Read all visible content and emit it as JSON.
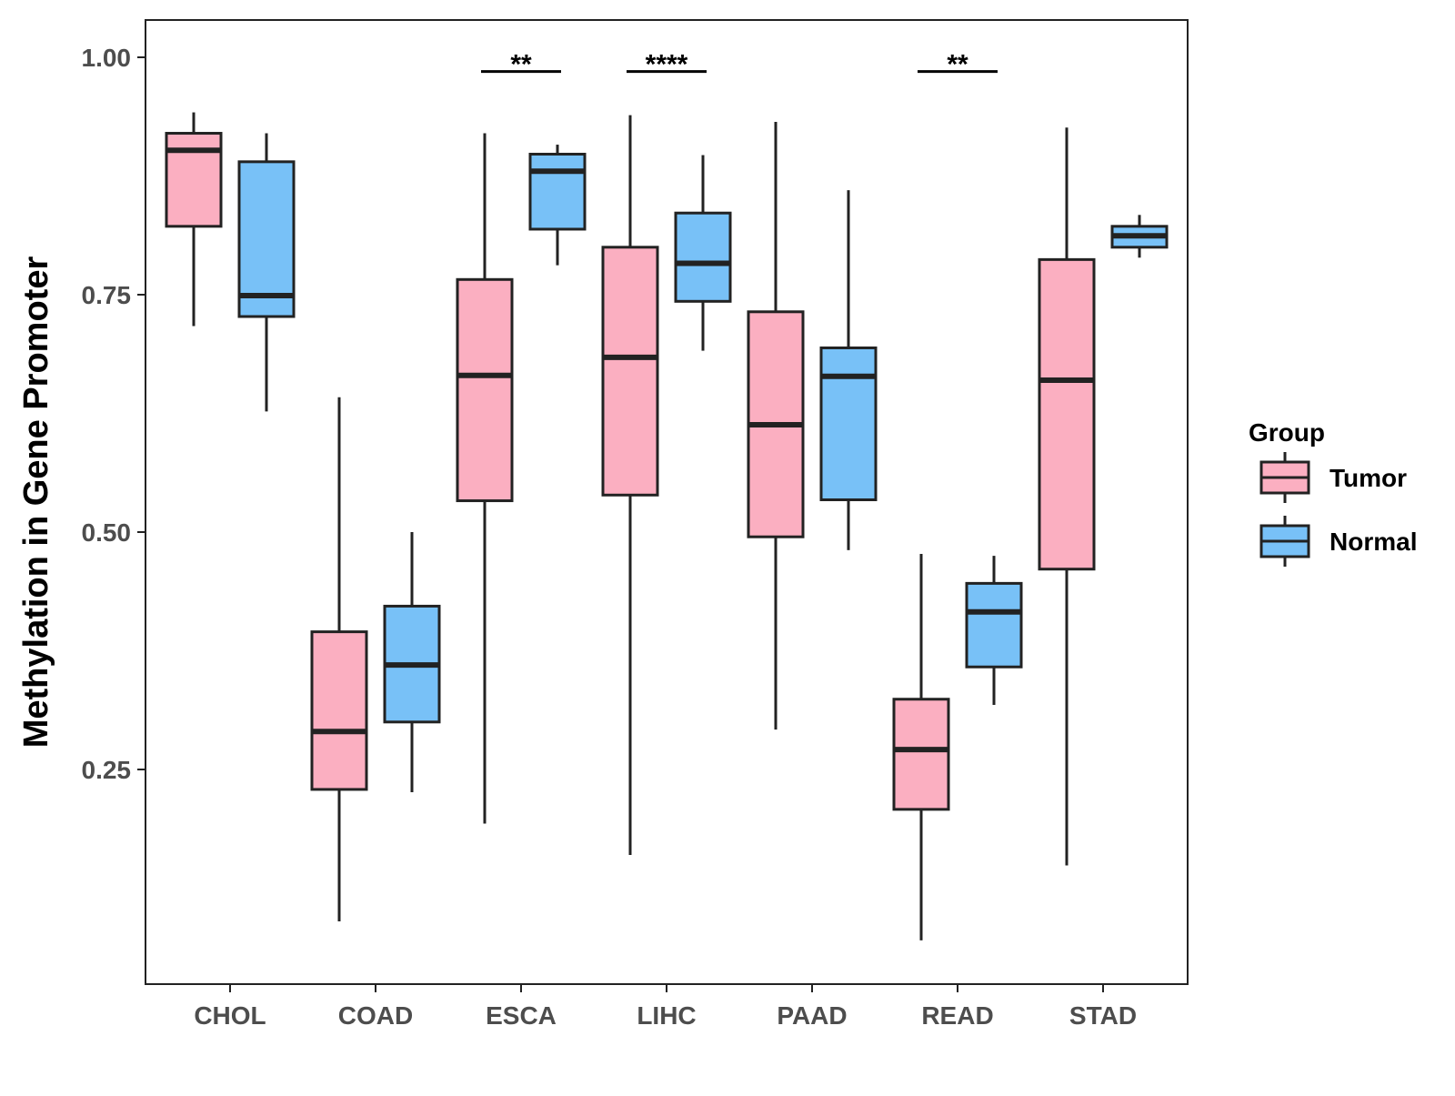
{
  "chart_data": {
    "type": "boxplot",
    "title": "",
    "xlabel": "",
    "ylabel": "Methylation in Gene Promoter",
    "ylim": [
      0.03,
      1.04
    ],
    "yticks": [
      0.25,
      0.5,
      0.75,
      1.0
    ],
    "ytick_labels": [
      "0.25",
      "0.50",
      "0.75",
      "1.00"
    ],
    "grid": false,
    "categories": [
      "CHOL",
      "COAD",
      "ESCA",
      "LIHC",
      "PAAD",
      "READ",
      "STAD"
    ],
    "legend": {
      "title": "Group",
      "position": "right",
      "entries": [
        {
          "name": "Tumor",
          "color": "#FBAFC1"
        },
        {
          "name": "Normal",
          "color": "#78C1F7"
        }
      ]
    },
    "series": [
      {
        "name": "Tumor",
        "color": "#FBAFC1",
        "boxes": [
          {
            "category": "CHOL",
            "whisker_low": 0.717,
            "q1": 0.822,
            "median": 0.902,
            "q3": 0.92,
            "whisker_high": 0.942
          },
          {
            "category": "COAD",
            "whisker_low": 0.09,
            "q1": 0.229,
            "median": 0.29,
            "q3": 0.395,
            "whisker_high": 0.642
          },
          {
            "category": "ESCA",
            "whisker_low": 0.193,
            "q1": 0.533,
            "median": 0.665,
            "q3": 0.766,
            "whisker_high": 0.92
          },
          {
            "category": "LIHC",
            "whisker_low": 0.16,
            "q1": 0.539,
            "median": 0.684,
            "q3": 0.8,
            "whisker_high": 0.939
          },
          {
            "category": "PAAD",
            "whisker_low": 0.292,
            "q1": 0.495,
            "median": 0.613,
            "q3": 0.732,
            "whisker_high": 0.932
          },
          {
            "category": "READ",
            "whisker_low": 0.07,
            "q1": 0.208,
            "median": 0.271,
            "q3": 0.324,
            "whisker_high": 0.477
          },
          {
            "category": "STAD",
            "whisker_low": 0.149,
            "q1": 0.461,
            "median": 0.66,
            "q3": 0.787,
            "whisker_high": 0.926
          }
        ]
      },
      {
        "name": "Normal",
        "color": "#78C1F7",
        "boxes": [
          {
            "category": "CHOL",
            "whisker_low": 0.627,
            "q1": 0.727,
            "median": 0.749,
            "q3": 0.89,
            "whisker_high": 0.92
          },
          {
            "category": "COAD",
            "whisker_low": 0.226,
            "q1": 0.3,
            "median": 0.36,
            "q3": 0.422,
            "whisker_high": 0.5
          },
          {
            "category": "ESCA",
            "whisker_low": 0.781,
            "q1": 0.819,
            "median": 0.88,
            "q3": 0.898,
            "whisker_high": 0.908
          },
          {
            "category": "LIHC",
            "whisker_low": 0.691,
            "q1": 0.743,
            "median": 0.783,
            "q3": 0.836,
            "whisker_high": 0.897
          },
          {
            "category": "PAAD",
            "whisker_low": 0.481,
            "q1": 0.534,
            "median": 0.664,
            "q3": 0.694,
            "whisker_high": 0.86
          },
          {
            "category": "READ",
            "whisker_low": 0.318,
            "q1": 0.358,
            "median": 0.416,
            "q3": 0.446,
            "whisker_high": 0.475
          },
          {
            "category": "STAD",
            "whisker_low": 0.789,
            "q1": 0.8,
            "median": 0.812,
            "q3": 0.822,
            "whisker_high": 0.834
          }
        ]
      }
    ],
    "annotations": [
      {
        "category": "ESCA",
        "label": "**",
        "y": 0.987
      },
      {
        "category": "LIHC",
        "label": "****",
        "y": 0.987
      },
      {
        "category": "READ",
        "label": "**",
        "y": 0.987
      }
    ]
  }
}
